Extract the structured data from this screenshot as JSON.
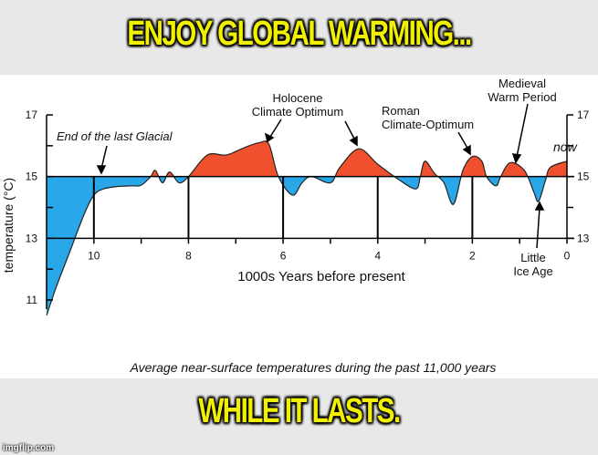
{
  "top_caption": "ENJOY GLOBAL WARMING...",
  "bottom_caption": "WHILE IT LASTS.",
  "watermark": "imgflip.com",
  "chart_data": {
    "type": "area",
    "title": "Average near-surface temperatures during the past 11,000 years",
    "xlabel": "1000s Years before present",
    "ylabel": "temperature (°C)",
    "xlim": [
      11,
      0
    ],
    "ylim": [
      11,
      17
    ],
    "baseline": 15,
    "x_ticks": [
      "10",
      "8",
      "6",
      "4",
      "2",
      "0"
    ],
    "y_ticks_left": [
      "17",
      "15",
      "13",
      "11"
    ],
    "y_ticks_right": [
      "17",
      "15",
      "13"
    ],
    "colors": {
      "above": "#f0502e",
      "below": "#2aa7e8"
    },
    "x": [
      11,
      10.8,
      10.5,
      10.2,
      10,
      9.8,
      9.5,
      9.2,
      9,
      8.8,
      8.7,
      8.55,
      8.4,
      8.2,
      8.0,
      7.6,
      7.2,
      6.8,
      6.5,
      6.3,
      6.1,
      5.8,
      5.6,
      5.4,
      5.0,
      4.8,
      4.4,
      4.0,
      3.6,
      3.2,
      3.1,
      3.0,
      2.8,
      2.6,
      2.4,
      2.2,
      2.0,
      1.8,
      1.7,
      1.5,
      1.4,
      1.2,
      0.9,
      0.7,
      0.6,
      0.45,
      0.35,
      0.0
    ],
    "y": [
      10.5,
      11.4,
      12.6,
      13.8,
      14.4,
      14.6,
      14.68,
      14.7,
      14.72,
      15.0,
      15.2,
      14.8,
      15.15,
      14.8,
      15.0,
      15.7,
      15.7,
      15.95,
      16.1,
      16.05,
      15.0,
      14.4,
      14.8,
      15.0,
      14.8,
      15.3,
      15.9,
      15.4,
      14.95,
      14.6,
      15.0,
      15.5,
      15.1,
      14.8,
      14.1,
      15.2,
      15.65,
      15.5,
      15.0,
      14.7,
      15.0,
      15.45,
      15.2,
      14.5,
      14.2,
      14.9,
      15.3,
      15.5
    ],
    "annotations": {
      "glacial": "End of the last Glacial",
      "holocene_1": "Holocene",
      "holocene_2": "Climate Optimum",
      "roman_1": "Roman",
      "roman_2": "Climate-Optimum",
      "medieval_1": "Medieval",
      "medieval_2": "Warm Period",
      "now": "now",
      "lia_1": "Little",
      "lia_2": "Ice Age"
    }
  }
}
